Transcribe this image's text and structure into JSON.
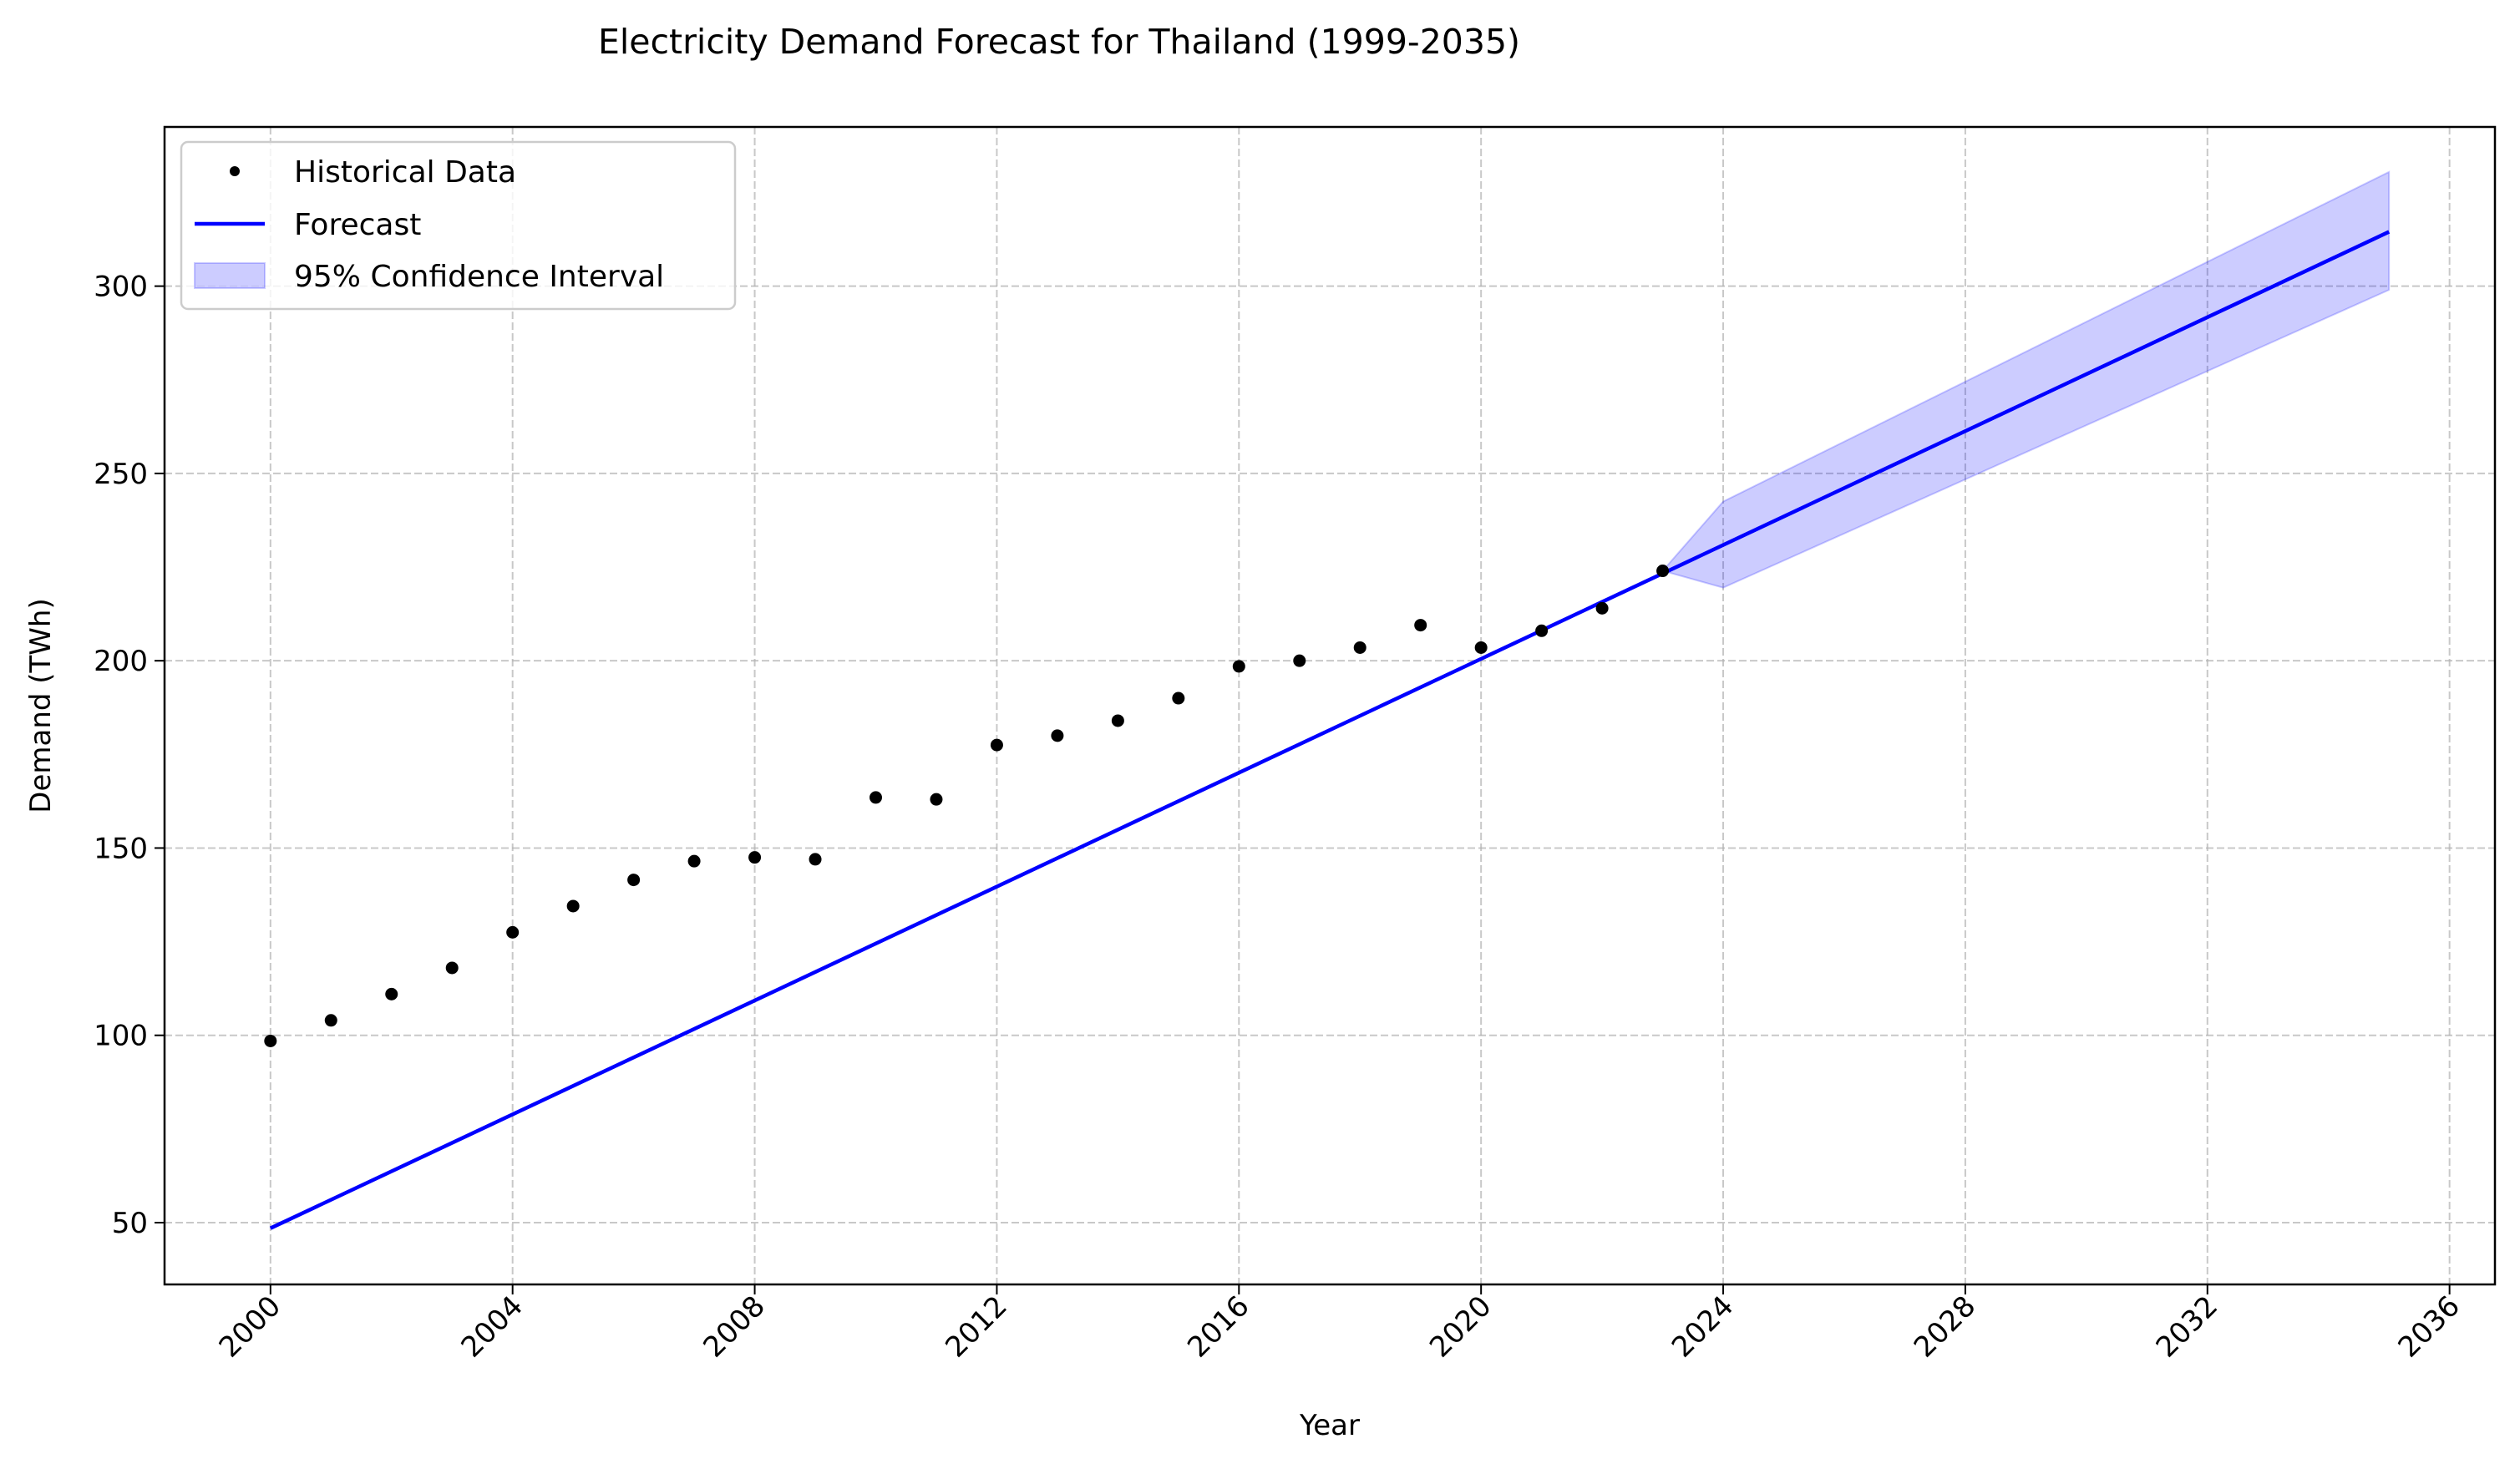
{
  "chart_data": {
    "type": "line",
    "title": "Electricity Demand Forecast for Thailand (1999-2035)",
    "xlabel": "Year",
    "ylabel": "Demand (TWh)",
    "xlim": [
      1998.25,
      2036.75
    ],
    "ylim": [
      33.5,
      342.5
    ],
    "xticks": [
      2000,
      2004,
      2008,
      2012,
      2016,
      2020,
      2024,
      2028,
      2032,
      2036
    ],
    "yticks": [
      50,
      100,
      150,
      200,
      250,
      300
    ],
    "grid": true,
    "legend_position": "top-left",
    "legend": [
      "Historical Data",
      "Forecast",
      "95% Confidence Interval"
    ],
    "series": [
      {
        "name": "Historical Data",
        "kind": "scatter",
        "color": "#000000",
        "x": [
          2000,
          2001,
          2002,
          2003,
          2004,
          2005,
          2006,
          2007,
          2008,
          2009,
          2010,
          2011,
          2012,
          2013,
          2014,
          2015,
          2016,
          2017,
          2018,
          2019,
          2020,
          2021,
          2022,
          2023
        ],
        "y": [
          98.5,
          104.0,
          111.0,
          118.0,
          127.5,
          134.5,
          141.5,
          146.5,
          147.5,
          147.0,
          163.5,
          163.0,
          177.5,
          180.0,
          184.0,
          190.0,
          198.5,
          200.0,
          203.5,
          209.5,
          203.5,
          208.0,
          214.0,
          224.0
        ]
      },
      {
        "name": "Forecast",
        "kind": "line",
        "color": "#0000ff",
        "x": [
          2000,
          2035
        ],
        "y": [
          48.5,
          314.5
        ]
      },
      {
        "name": "95% Confidence Interval",
        "kind": "band",
        "color": "#0000ff",
        "opacity": 0.2,
        "x": [
          2023,
          2024,
          2035
        ],
        "upper": [
          224.0,
          242.5,
          330.5
        ],
        "lower": [
          224.0,
          219.5,
          299.0
        ]
      }
    ]
  }
}
